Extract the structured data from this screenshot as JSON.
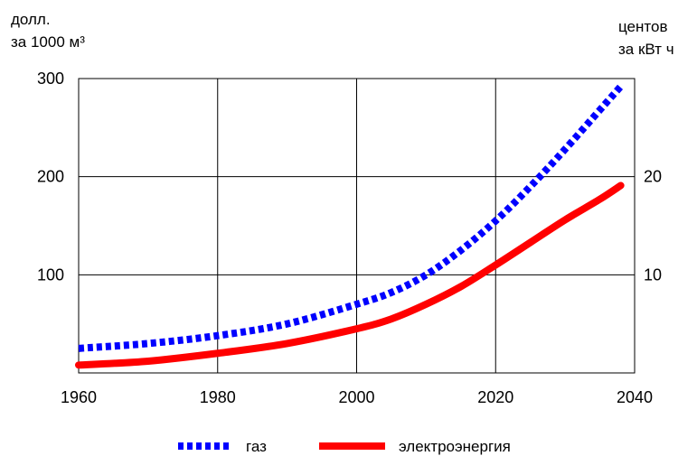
{
  "chart_data": {
    "type": "line",
    "left_axis_label": [
      "долл.",
      "за 1000 м³"
    ],
    "right_axis_label": [
      "центов",
      "за кВт ч"
    ],
    "x_ticks": [
      "1960",
      "1980",
      "2000",
      "2020",
      "2040"
    ],
    "y_left_ticks": [
      "100",
      "200",
      "300"
    ],
    "y_right_ticks": [
      "10",
      "20"
    ],
    "xlim": [
      1960,
      2040
    ],
    "ylim_left": [
      0,
      300
    ],
    "ylim_right": [
      0,
      30
    ],
    "grid": true,
    "legend_position": "bottom",
    "series": [
      {
        "name": "газ",
        "axis": "left",
        "color": "#0000ff",
        "style": "dotted",
        "x": [
          1960,
          1970,
          1980,
          1990,
          2000,
          2005,
          2010,
          2015,
          2020,
          2025,
          2030,
          2035,
          2038
        ],
        "y": [
          25,
          30,
          38,
          50,
          70,
          82,
          100,
          125,
          155,
          190,
          228,
          268,
          292
        ]
      },
      {
        "name": "электроэнергия",
        "axis": "right",
        "color": "#ff0000",
        "style": "solid",
        "x": [
          1960,
          1970,
          1980,
          1990,
          2000,
          2005,
          2010,
          2015,
          2020,
          2025,
          2030,
          2035,
          2038
        ],
        "y": [
          0.8,
          1.2,
          2.0,
          3.0,
          4.5,
          5.5,
          7.0,
          8.8,
          11.0,
          13.3,
          15.6,
          17.7,
          19.1
        ]
      }
    ]
  }
}
